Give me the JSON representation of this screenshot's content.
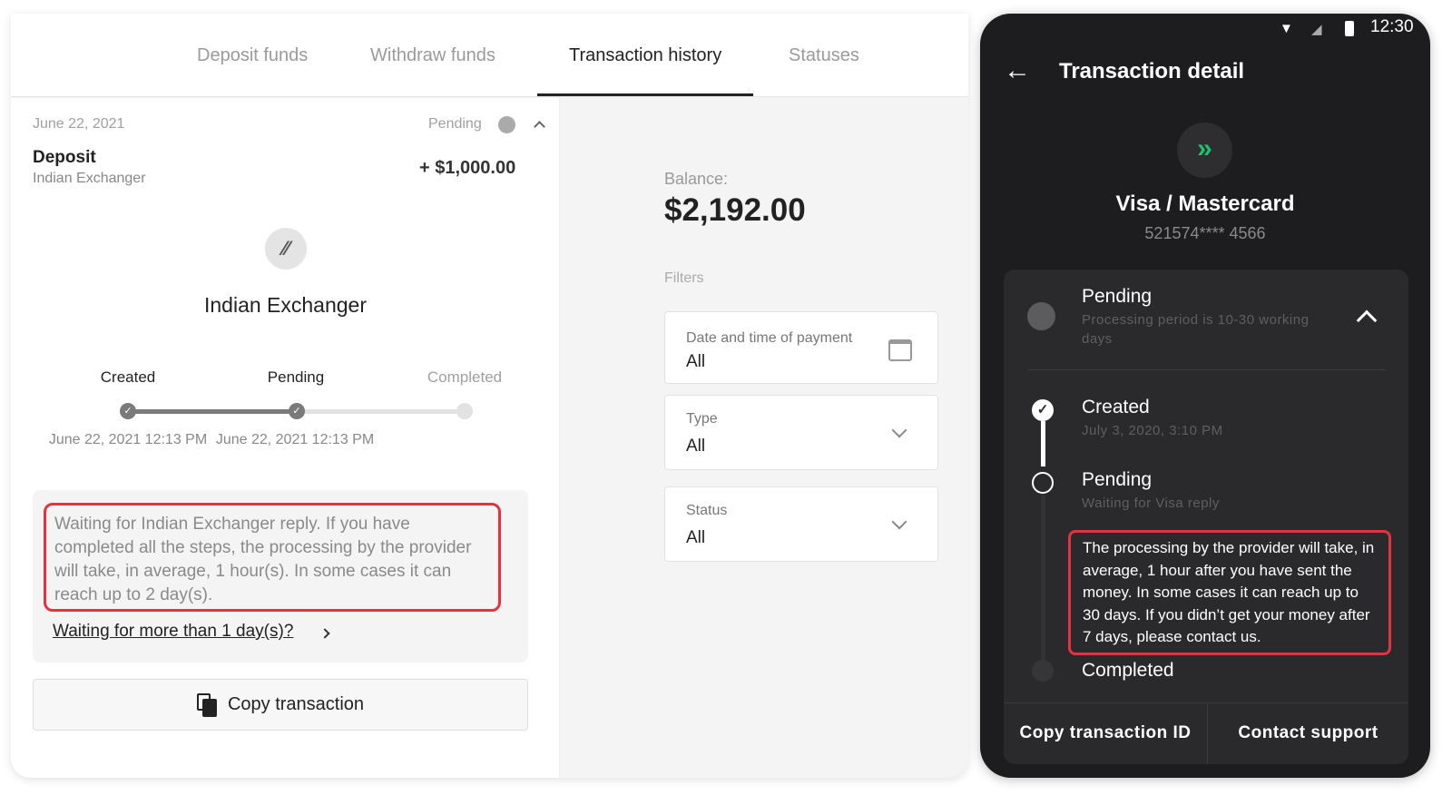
{
  "tabs": [
    {
      "label": "Deposit funds"
    },
    {
      "label": "Withdraw funds"
    },
    {
      "label": "Transaction history",
      "active": true
    },
    {
      "label": "Statuses"
    }
  ],
  "transaction": {
    "date": "June 22, 2021",
    "status": "Pending",
    "type": "Deposit",
    "provider": "Indian Exchanger",
    "amount": "+ $1,000.00",
    "provider_title": "Indian Exchanger",
    "steps": [
      {
        "label": "Created",
        "date": "June 22, 2021 12:13 PM",
        "done": true
      },
      {
        "label": "Pending",
        "date": "June 22, 2021 12:13 PM",
        "done": true
      },
      {
        "label": "Completed",
        "date": "",
        "done": false
      }
    ],
    "message": "Waiting for Indian Exchanger reply. If you have completed all the steps, the processing by the provider will take, in average, 1 hour(s). In some cases it can reach up to 2 day(s).",
    "help_link": "Waiting for more than 1 day(s)?",
    "copy_button": "Copy transaction"
  },
  "balance": {
    "label": "Balance:",
    "value": "$2,192.00"
  },
  "filters": {
    "title": "Filters",
    "items": [
      {
        "label": "Date and time of payment",
        "value": "All",
        "icon": "calendar-icon"
      },
      {
        "label": "Type",
        "value": "All",
        "icon": "chevron-down-icon"
      },
      {
        "label": "Status",
        "value": "All",
        "icon": "chevron-down-icon"
      }
    ]
  },
  "phone": {
    "time": "12:30",
    "title": "Transaction detail",
    "method": "Visa / Mastercard",
    "card": "521574**** 4566",
    "status": {
      "title": "Pending",
      "subtitle": "Processing period is 10-30 working days"
    },
    "timeline": [
      {
        "label": "Created",
        "sub": "July 3, 2020, 3:10 PM"
      },
      {
        "label": "Pending",
        "sub": "Waiting for Visa reply"
      },
      {
        "label": "Completed",
        "sub": ""
      }
    ],
    "message": "The processing by the provider will take, in average, 1 hour after you have sent the money. In some cases it can reach up to 30 days. If you didn’t get your money after 7 days, please contact us.",
    "copy_id": "Copy transaction ID",
    "support": "Contact support",
    "accent": "#1fc16b",
    "highlight": "#e43241"
  }
}
